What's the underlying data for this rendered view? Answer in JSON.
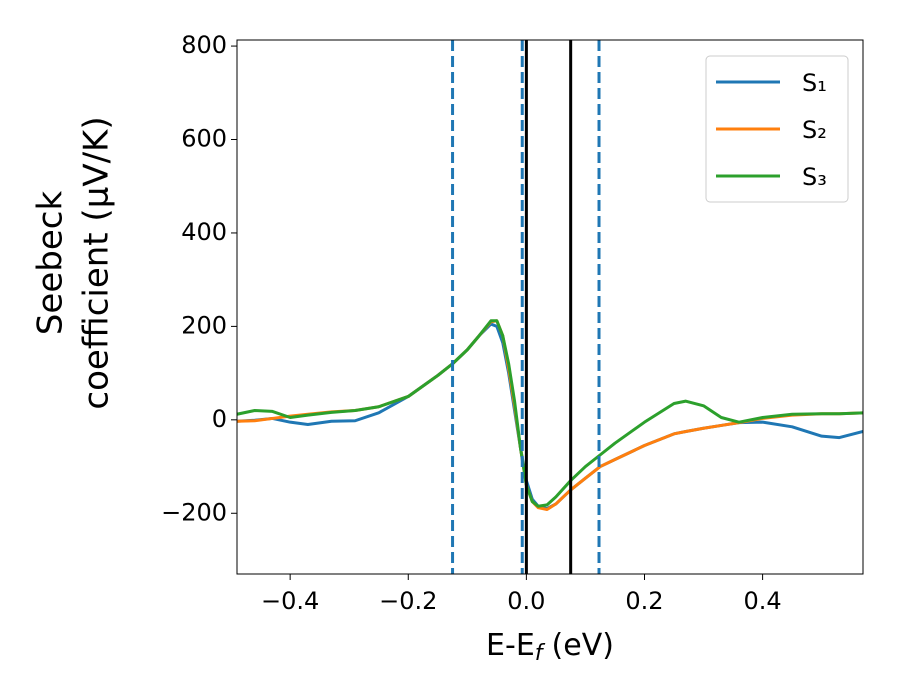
{
  "chart_data": {
    "type": "line",
    "x_label": [
      "E-E",
      "f",
      "(eV)"
    ],
    "y_label": [
      "Seebeck",
      "coefficient  (μV/K)"
    ],
    "x": [
      -0.49,
      -0.46,
      -0.43,
      -0.4,
      -0.37,
      -0.33,
      -0.29,
      -0.25,
      -0.2,
      -0.15,
      -0.125,
      -0.1,
      -0.08,
      -0.06,
      -0.05,
      -0.04,
      -0.03,
      -0.02,
      -0.01,
      0.0,
      0.01,
      0.02,
      0.035,
      0.05,
      0.075,
      0.1,
      0.125,
      0.15,
      0.2,
      0.25,
      0.27,
      0.3,
      0.33,
      0.36,
      0.4,
      0.45,
      0.5,
      0.53,
      0.57
    ],
    "series": [
      {
        "name": "S₁",
        "color": "#1f77b4",
        "values": [
          -3,
          -1,
          3,
          -5,
          -10,
          -3,
          -2,
          15,
          50,
          95,
          120,
          150,
          180,
          205,
          200,
          165,
          100,
          20,
          -60,
          -130,
          -170,
          -185,
          -190,
          -180,
          -150,
          -125,
          -100,
          -85,
          -55,
          -30,
          -25,
          -18,
          -12,
          -6,
          -5,
          -15,
          -35,
          -38,
          -25
        ]
      },
      {
        "name": "S₂",
        "color": "#ff7f0e",
        "values": [
          -3,
          -2,
          3,
          8,
          12,
          17,
          20,
          28,
          50,
          95,
          120,
          150,
          180,
          210,
          212,
          180,
          110,
          30,
          -60,
          -140,
          -175,
          -188,
          -192,
          -180,
          -150,
          -125,
          -100,
          -85,
          -55,
          -30,
          -25,
          -18,
          -12,
          -6,
          3,
          10,
          13,
          13,
          15
        ]
      },
      {
        "name": "S₃",
        "color": "#2ca02c",
        "values": [
          12,
          20,
          18,
          5,
          10,
          16,
          20,
          28,
          50,
          95,
          120,
          150,
          180,
          212,
          212,
          180,
          120,
          40,
          -60,
          -140,
          -175,
          -185,
          -182,
          -165,
          -130,
          -100,
          -75,
          -50,
          -5,
          35,
          40,
          30,
          5,
          -5,
          5,
          12,
          13,
          13,
          15
        ]
      }
    ],
    "vlines": [
      {
        "x": -0.125,
        "color": "#1f77b4",
        "style": "dashed"
      },
      {
        "x": -0.007,
        "color": "#1f77b4",
        "style": "dashed"
      },
      {
        "x": 0.123,
        "color": "#1f77b4",
        "style": "dashed"
      },
      {
        "x": 0.0,
        "color": "#000000",
        "style": "solid"
      },
      {
        "x": 0.075,
        "color": "#000000",
        "style": "solid"
      }
    ],
    "xlim": [
      -0.49,
      0.57
    ],
    "ylim": [
      -330,
      813
    ],
    "xticks": [
      {
        "value": -0.4,
        "label": "−0.4"
      },
      {
        "value": -0.2,
        "label": "−0.2"
      },
      {
        "value": 0,
        "label": "0.0"
      },
      0.2,
      0.4
    ],
    "yticks": [
      {
        "value": -200,
        "label": "−200"
      },
      0,
      200,
      400,
      600,
      800
    ],
    "legend": "upper right"
  }
}
